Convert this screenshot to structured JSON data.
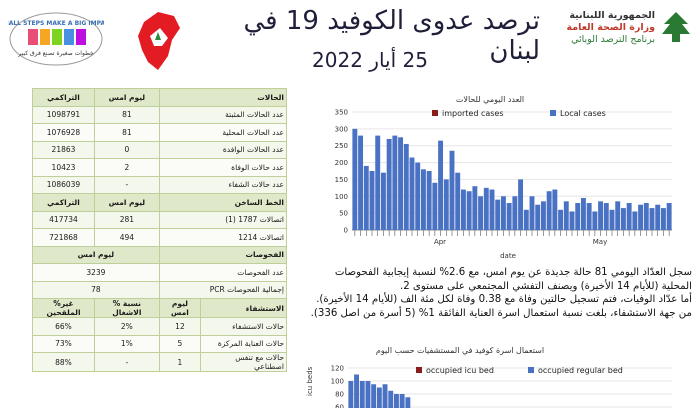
{
  "header": {
    "title": "ترصد عدوى الكوفيد 19 في لبنان",
    "date": "25 أيار 2022",
    "ministry_line1": "الجمهورية اللبنانية",
    "ministry_line2": "وزارة الصحة العامة",
    "ministry_line3": "برنامج الترصد الوبائي",
    "campaign_text": "SMALL STEPS MAKE A BIG IMPACT",
    "campaign_sub": "خطوات صغيرة تصنع فرق كبير"
  },
  "table": {
    "sections": [
      {
        "header": [
          "الحالات",
          "ليوم امس",
          "التراكمي"
        ],
        "rows": [
          [
            "عدد الحالات المثبتة",
            "81",
            "1098791"
          ],
          [
            "عدد الحالات المحلية",
            "81",
            "1076928"
          ],
          [
            "عدد الحالات الوافدة",
            "0",
            "21863"
          ],
          [
            "عدد حالات الوفاة",
            "2",
            "10423"
          ],
          [
            "عدد حالات الشفاء",
            "-",
            "1086039"
          ]
        ]
      },
      {
        "header": [
          "الخط الساخن",
          "ليوم امس",
          "التراكمي"
        ],
        "rows": [
          [
            "اتصالات 1787 (1)",
            "281",
            "417734"
          ],
          [
            "اتصالات 1214",
            "494",
            "721868"
          ]
        ]
      },
      {
        "full_header": [
          "الفحوصات",
          "ليوم امس"
        ],
        "rows": [
          [
            "عدد الفحوصات",
            "3239"
          ],
          [
            "إجمالية الفحوصات PCR",
            "78"
          ]
        ]
      },
      {
        "header4": [
          "الاستشفاء",
          "ليوم امس",
          "% نسبة الاشغال",
          "%غير الملقحين"
        ],
        "rows": [
          [
            "حالات الاستشفاء",
            "12",
            "2%",
            "66%"
          ],
          [
            "حالات العناية المركزة",
            "5",
            "1%",
            "73%"
          ],
          [
            "حالات مع تنفس اصطناعي",
            "1",
            "-",
            "88%"
          ]
        ]
      }
    ]
  },
  "chart1": {
    "title": "العدد اليومي للحالات",
    "legend_imported": "imported cases",
    "legend_local": "Local cases",
    "xlabel": "date",
    "month1": "Apr",
    "month2": "May",
    "colors": {
      "local": "#4a72c4",
      "imported": "#8b1c1c"
    }
  },
  "chart2": {
    "title": "استعمال اسرة كوفيد في المستشفيات حسب اليوم",
    "legend_icu": "occupied icu bed",
    "legend_regular": "occupied regular bed",
    "ylabel": "icu beds",
    "colors": {
      "icu": "#8b1c1c",
      "regular": "#4a72c4"
    }
  },
  "paragraph": {
    "line1": "سجل العدّاد اليومي 81 حالة جديدة عن يوم امس، مع 2.6% لنسبة إيجابية الفحوصات",
    "line2": "المحلية (للأيام 14 الأخيرة) ويصنف التفشي المجتمعي على مستوى 2.",
    "line3": "أما عدّاد الوفيات، فتم تسجيل حالتين وفاة مع 0.38 وفاة لكل مئة الف (للأيام 14 الأخيرة).",
    "line4": "من جهة الاستشفاء، بلغت نسبة استعمال اسرة العناية الفائقة 1% (5 أسرة من اصل 336)."
  },
  "chart_data": [
    {
      "type": "bar",
      "title": "العدد اليومي للحالات",
      "xlabel": "date",
      "ylim": [
        0,
        350
      ],
      "yticks": [
        0,
        50,
        100,
        150,
        200,
        250,
        300,
        350
      ],
      "series": [
        {
          "name": "imported cases",
          "values": [
            0,
            0,
            0,
            0,
            0,
            0,
            0,
            0,
            0,
            0,
            0,
            0,
            0,
            0,
            0,
            0,
            0,
            0,
            0,
            0,
            0,
            0,
            0,
            0,
            0,
            0,
            0,
            0,
            0,
            0,
            0,
            0,
            0,
            0,
            0,
            0,
            0,
            0,
            0,
            0,
            0,
            0,
            0,
            0,
            0,
            0,
            0,
            0,
            0,
            0,
            0,
            0,
            0,
            0,
            0,
            0
          ]
        },
        {
          "name": "Local cases",
          "values": [
            300,
            280,
            190,
            175,
            280,
            170,
            270,
            280,
            275,
            255,
            215,
            200,
            180,
            175,
            140,
            265,
            150,
            235,
            170,
            120,
            115,
            130,
            100,
            125,
            120,
            90,
            100,
            80,
            100,
            150,
            60,
            100,
            75,
            85,
            115,
            120,
            60,
            85,
            55,
            80,
            95,
            80,
            55,
            85,
            80,
            60,
            85,
            65,
            80,
            55,
            75,
            80,
            65,
            75,
            65,
            80
          ]
        }
      ],
      "xtick_labels": [
        "Apr",
        "May"
      ]
    },
    {
      "type": "bar",
      "title": "استعمال اسرة كوفيد في المستشفيات حسب اليوم",
      "ylabel": "icu beds",
      "ylim": [
        0,
        120
      ],
      "yticks": [
        60,
        80,
        100,
        120
      ],
      "series": [
        {
          "name": "occupied icu bed",
          "values": []
        },
        {
          "name": "occupied regular bed",
          "values": [
            100,
            110,
            100,
            100,
            95,
            90,
            95,
            85,
            80,
            80,
            75
          ]
        }
      ]
    }
  ]
}
